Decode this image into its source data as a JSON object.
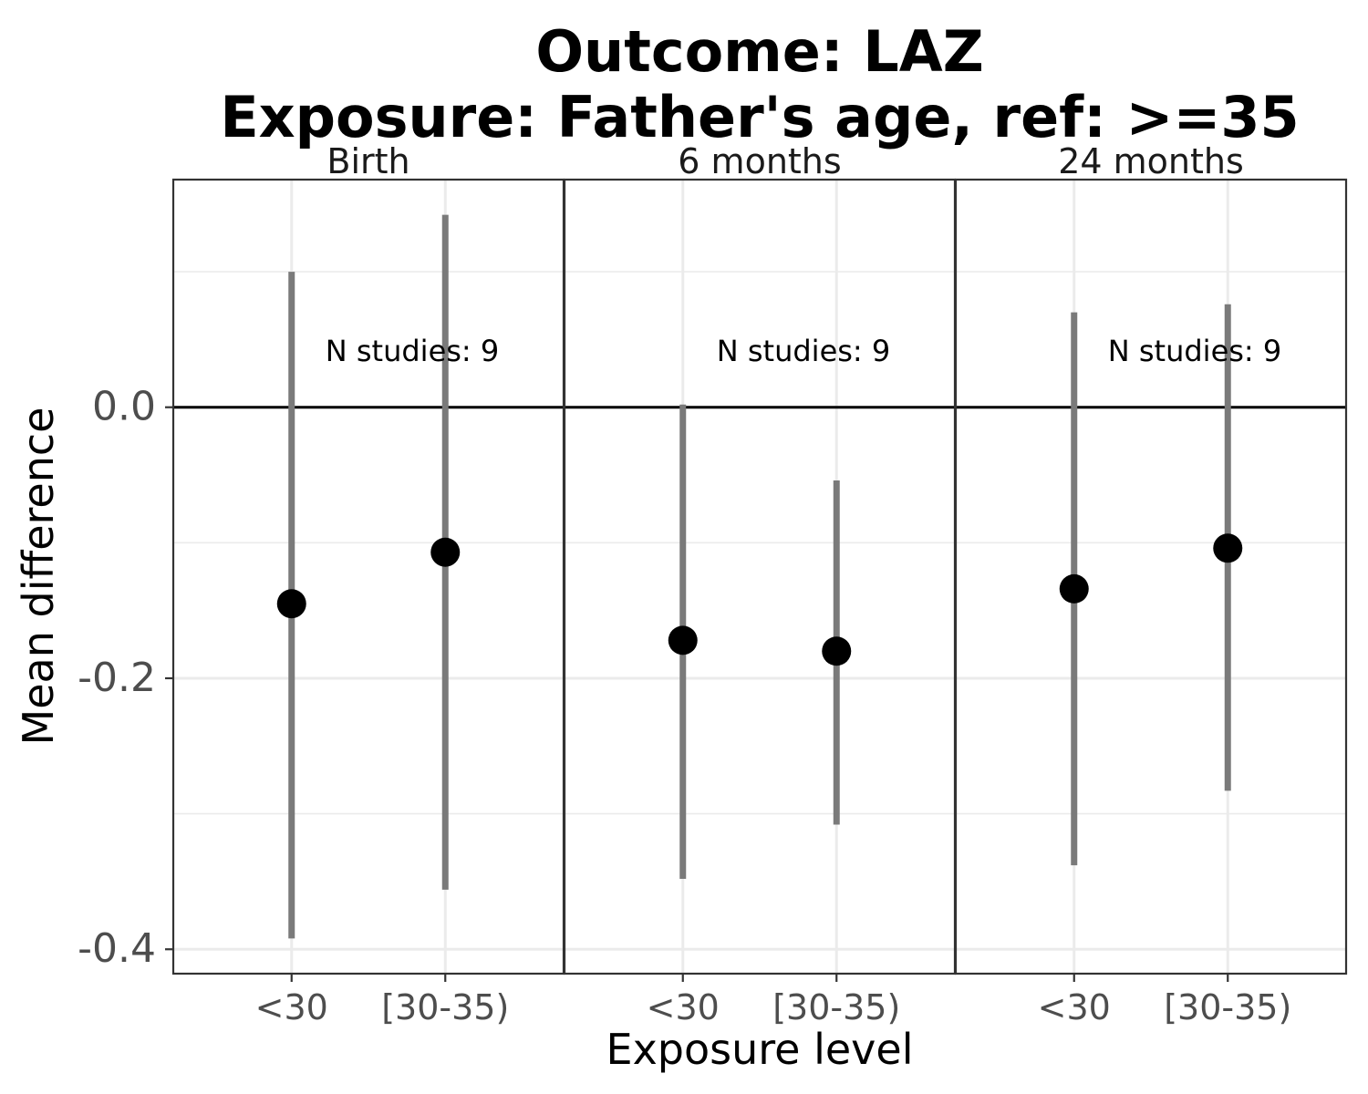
{
  "chart_data": {
    "type": "scatter",
    "title": "Outcome: LAZ",
    "subtitle": "Exposure: Father's age, ref: >=35",
    "xlabel": "Exposure level",
    "ylabel": "Mean difference",
    "ylim": [
      -0.418,
      0.168
    ],
    "y_ticks": [
      0.0,
      -0.2,
      -0.4
    ],
    "y_tick_labels": [
      "0.0",
      "-0.2",
      "-0.4"
    ],
    "reference_line": 0.0,
    "grid": true,
    "categories": [
      "<30",
      "[30-35)"
    ],
    "panels": [
      {
        "label": "Birth",
        "annotation": "N studies: 9",
        "points": [
          {
            "x": "<30",
            "estimate": -0.145,
            "lower": -0.392,
            "upper": 0.1
          },
          {
            "x": "[30-35)",
            "estimate": -0.107,
            "lower": -0.356,
            "upper": 0.142
          }
        ]
      },
      {
        "label": "6 months",
        "annotation": "N studies: 9",
        "points": [
          {
            "x": "<30",
            "estimate": -0.172,
            "lower": -0.348,
            "upper": 0.002
          },
          {
            "x": "[30-35)",
            "estimate": -0.18,
            "lower": -0.308,
            "upper": -0.054
          }
        ]
      },
      {
        "label": "24 months",
        "annotation": "N studies: 9",
        "points": [
          {
            "x": "<30",
            "estimate": -0.134,
            "lower": -0.338,
            "upper": 0.07
          },
          {
            "x": "[30-35)",
            "estimate": -0.104,
            "lower": -0.283,
            "upper": 0.076
          }
        ]
      }
    ]
  }
}
